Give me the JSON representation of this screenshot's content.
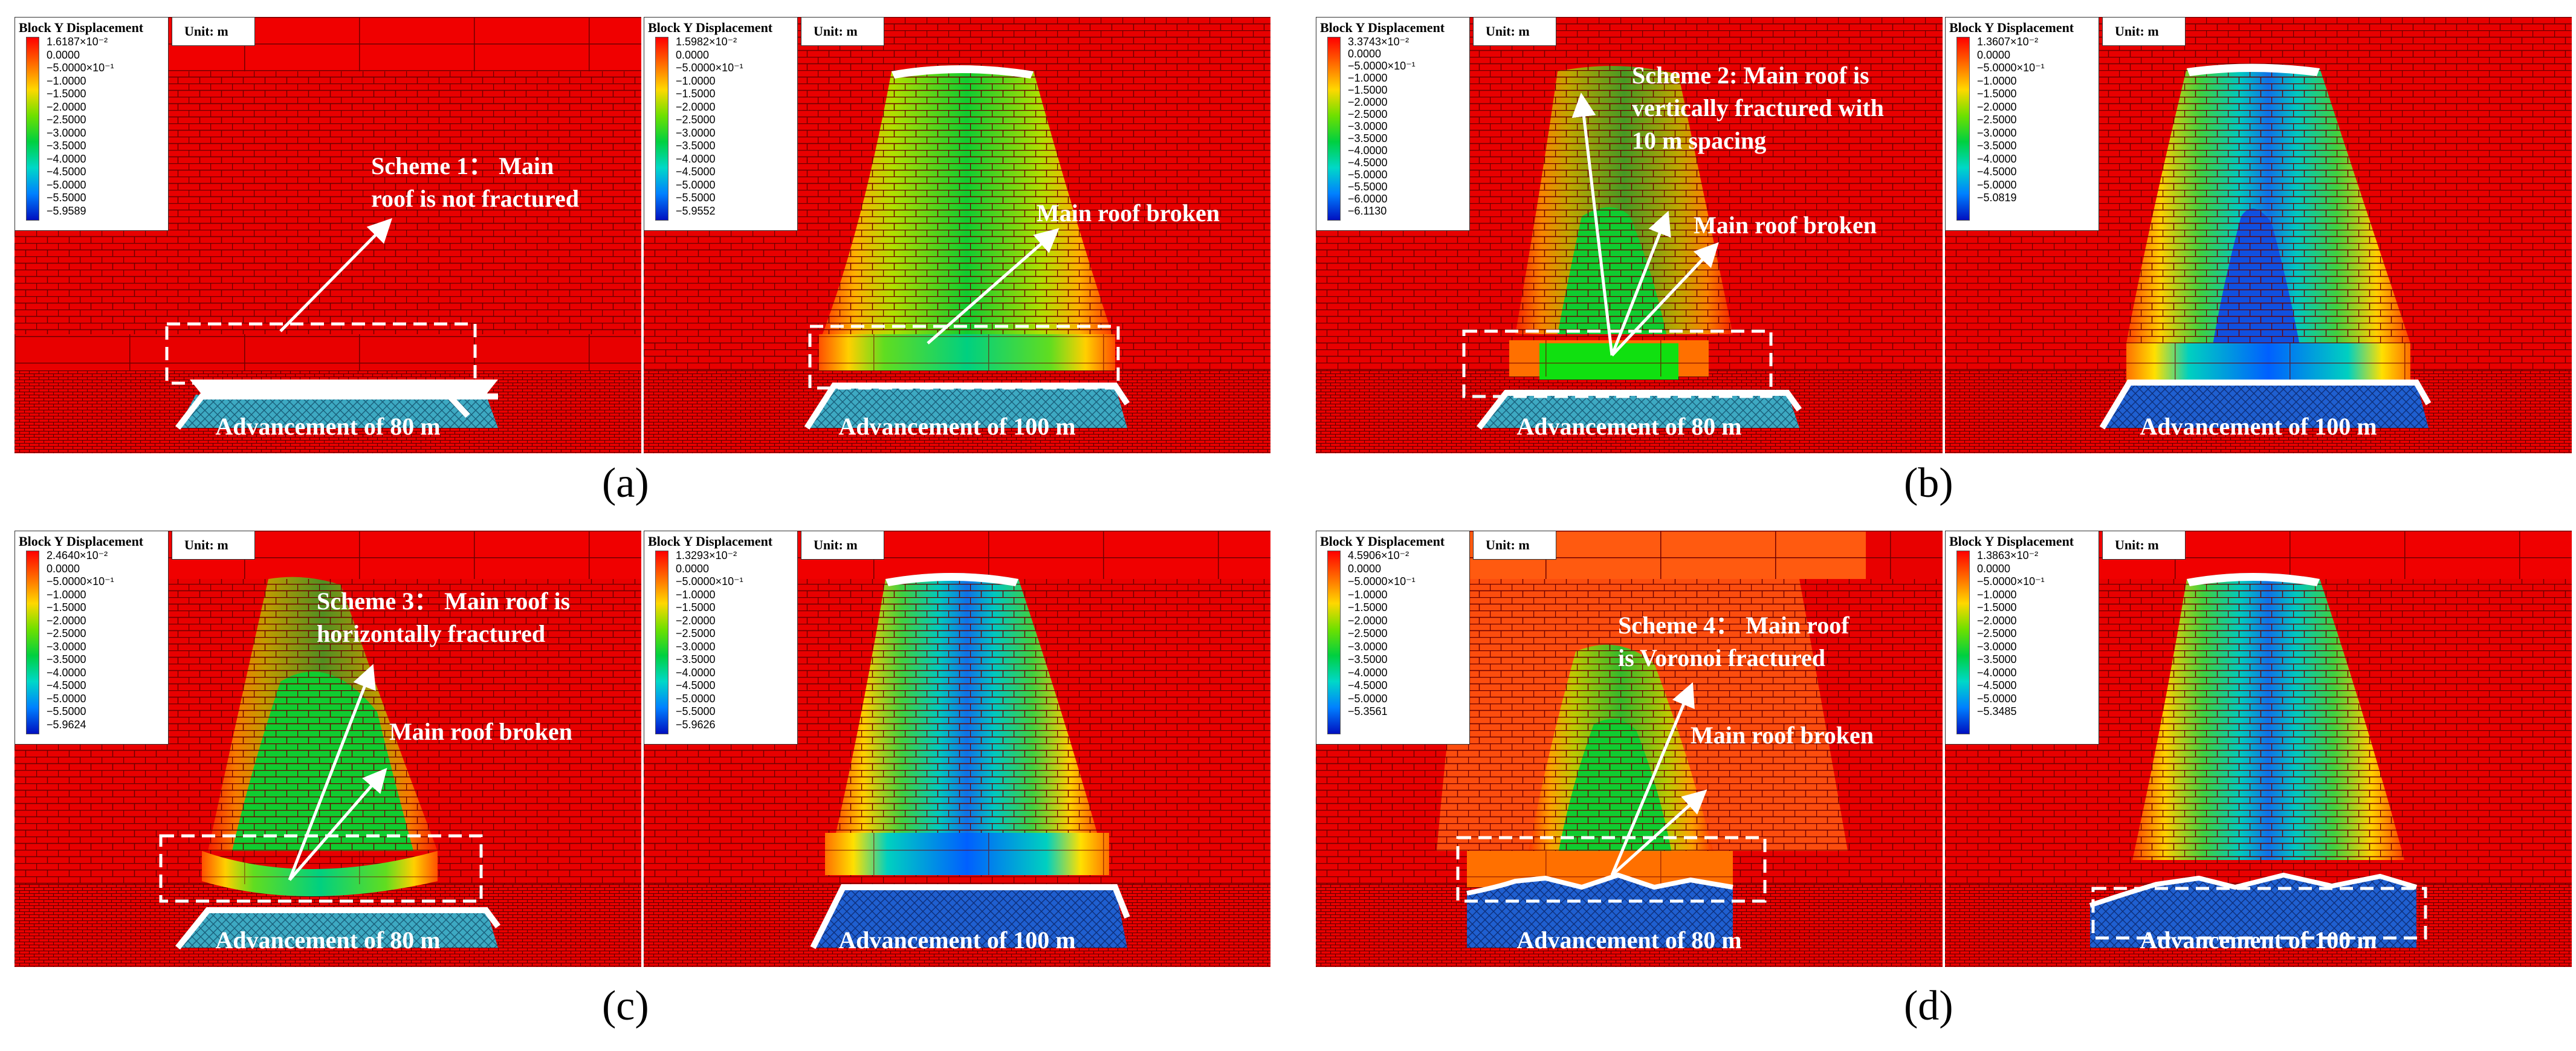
{
  "legend_title": "Block Y Displacement",
  "unit_label": "Unit: m",
  "panels": {
    "a1": {
      "legend": [
        "1.6187×10⁻²",
        "0.0000",
        "−5.0000×10⁻¹",
        "−1.0000",
        "−1.5000",
        "−2.0000",
        "−2.5000",
        "−3.0000",
        "−3.5000",
        "−4.0000",
        "−4.5000",
        "−5.0000",
        "−5.5000",
        "−5.9589"
      ],
      "advancement": "Advancement of 80 m",
      "ann1": "Scheme 1： Main",
      "ann2": "roof is not fractured"
    },
    "a2": {
      "legend": [
        "1.5982×10⁻²",
        "0.0000",
        "−5.0000×10⁻¹",
        "−1.0000",
        "−1.5000",
        "−2.0000",
        "−2.5000",
        "−3.0000",
        "−3.5000",
        "−4.0000",
        "−4.5000",
        "−5.0000",
        "−5.5000",
        "−5.9552"
      ],
      "advancement": "Advancement of 100 m",
      "broken": "Main roof broken"
    },
    "b1": {
      "legend": [
        "3.3743×10⁻²",
        "0.0000",
        "−5.0000×10⁻¹",
        "−1.0000",
        "−1.5000",
        "−2.0000",
        "−2.5000",
        "−3.0000",
        "−3.5000",
        "−4.0000",
        "−4.5000",
        "−5.0000",
        "−5.5000",
        "−6.0000",
        "−6.1130"
      ],
      "advancement": "Advancement of 80 m",
      "ann1": "Scheme 2: Main roof is",
      "ann2": "vertically fractured with",
      "ann3": "10 m spacing",
      "broken": "Main roof broken"
    },
    "b2": {
      "legend": [
        "1.3607×10⁻²",
        "0.0000",
        "−5.0000×10⁻¹",
        "−1.0000",
        "−1.5000",
        "−2.0000",
        "−2.5000",
        "−3.0000",
        "−3.5000",
        "−4.0000",
        "−4.5000",
        "−5.0000",
        "−5.0819"
      ],
      "advancement": "Advancement of 100 m"
    },
    "c1": {
      "legend": [
        "2.4640×10⁻²",
        "0.0000",
        "−5.0000×10⁻¹",
        "−1.0000",
        "−1.5000",
        "−2.0000",
        "−2.5000",
        "−3.0000",
        "−3.5000",
        "−4.0000",
        "−4.5000",
        "−5.0000",
        "−5.5000",
        "−5.9624"
      ],
      "advancement": "Advancement of 80 m",
      "ann1": "Scheme 3： Main roof is",
      "ann2": "horizontally fractured",
      "broken": "Main roof broken"
    },
    "c2": {
      "legend": [
        "1.3293×10⁻²",
        "0.0000",
        "−5.0000×10⁻¹",
        "−1.0000",
        "−1.5000",
        "−2.0000",
        "−2.5000",
        "−3.0000",
        "−3.5000",
        "−4.0000",
        "−4.5000",
        "−5.0000",
        "−5.5000",
        "−5.9626"
      ],
      "advancement": "Advancement of 100 m"
    },
    "d1": {
      "legend": [
        "4.5906×10⁻²",
        "0.0000",
        "−5.0000×10⁻¹",
        "−1.0000",
        "−1.5000",
        "−2.0000",
        "−2.5000",
        "−3.0000",
        "−3.5000",
        "−4.0000",
        "−4.5000",
        "−5.0000",
        "−5.3561"
      ],
      "advancement": "Advancement of 80 m",
      "ann1": "Scheme 4：  Main roof",
      "ann2": "is Voronoi fractured",
      "broken": "Main roof broken"
    },
    "d2": {
      "legend": [
        "1.3863×10⁻²",
        "0.0000",
        "−5.0000×10⁻¹",
        "−1.0000",
        "−1.5000",
        "−2.0000",
        "−2.5000",
        "−3.0000",
        "−3.5000",
        "−4.0000",
        "−4.5000",
        "−5.0000",
        "−5.3485"
      ],
      "advancement": "Advancement of 100 m"
    }
  },
  "subfig_labels": {
    "a": "(a)",
    "b": "(b)",
    "c": "(c)",
    "d": "(d)"
  }
}
